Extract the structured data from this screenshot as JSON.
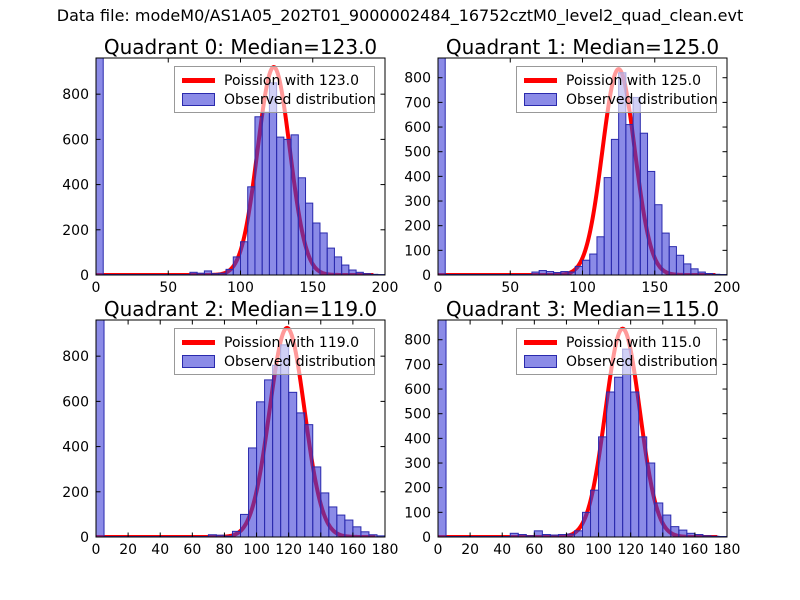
{
  "figure": {
    "title": "Data file: modeM0/AS1A05_202T01_9000002484_16752cztM0_level2_quad_clean.evt"
  },
  "colors": {
    "curve": "#ff0000",
    "bar_fill": "rgba(62,62,215,0.6)",
    "bar_edge": "#2a2aad",
    "axes_line": "#000000",
    "legend_border": "#999999",
    "legend_bg": "rgba(255,255,255,0.6)",
    "text": "#000000"
  },
  "chart_data": [
    {
      "type": "bar",
      "subtype": "histogram_with_poisson_fit",
      "title": "Quadrant 0: Median=123.0",
      "median": 123.0,
      "legend": [
        "Poission with 123.0",
        "Observed distribution"
      ],
      "legend_position": "upper center-right",
      "grid": false,
      "xlabel": "",
      "ylabel": "",
      "xlim": [
        0,
        200
      ],
      "ylim": [
        0,
        960
      ],
      "xticks": [
        0,
        50,
        100,
        150,
        200
      ],
      "yticks": [
        0,
        200,
        400,
        600,
        800
      ],
      "bin_width": 5,
      "counts": [
        960,
        2,
        2,
        2,
        2,
        2,
        2,
        2,
        2,
        2,
        2,
        2,
        2,
        12,
        8,
        18,
        6,
        8,
        25,
        80,
        147,
        390,
        700,
        720,
        850,
        610,
        600,
        620,
        430,
        318,
        230,
        186,
        119,
        80,
        44,
        22,
        12,
        6,
        3,
        2
      ],
      "curve": {
        "mean": 123,
        "sigma": 11.1,
        "amplitude": 920,
        "x_end": 192
      }
    },
    {
      "type": "bar",
      "subtype": "histogram_with_poisson_fit",
      "title": "Quadrant 1: Median=125.0",
      "median": 125.0,
      "legend": [
        "Poission with 125.0",
        "Observed distribution"
      ],
      "legend_position": "upper center-right",
      "grid": false,
      "xlabel": "",
      "ylabel": "",
      "xlim": [
        0,
        200
      ],
      "ylim": [
        0,
        880
      ],
      "xticks": [
        0,
        50,
        100,
        150,
        200
      ],
      "yticks": [
        0,
        100,
        200,
        300,
        400,
        500,
        600,
        700,
        800
      ],
      "bin_width": 5,
      "counts": [
        880,
        2,
        2,
        2,
        2,
        2,
        2,
        2,
        2,
        2,
        2,
        2,
        2,
        12,
        18,
        14,
        10,
        14,
        12,
        35,
        60,
        85,
        155,
        395,
        550,
        820,
        610,
        720,
        575,
        420,
        285,
        170,
        115,
        80,
        45,
        25,
        12,
        6,
        3,
        2
      ],
      "curve": {
        "mean": 125,
        "sigma": 11.2,
        "amplitude": 835,
        "x_end": 192
      }
    },
    {
      "type": "bar",
      "subtype": "histogram_with_poisson_fit",
      "title": "Quadrant 2: Median=119.0",
      "median": 119.0,
      "legend": [
        "Poission with 119.0",
        "Observed distribution"
      ],
      "legend_position": "upper center-right",
      "grid": false,
      "xlabel": "",
      "ylabel": "",
      "xlim": [
        0,
        180
      ],
      "ylim": [
        0,
        960
      ],
      "xticks": [
        0,
        20,
        40,
        60,
        80,
        100,
        120,
        140,
        160,
        180
      ],
      "yticks": [
        0,
        200,
        400,
        600,
        800
      ],
      "bin_width": 5,
      "counts": [
        960,
        2,
        2,
        2,
        2,
        2,
        2,
        2,
        2,
        2,
        2,
        2,
        2,
        2,
        10,
        8,
        4,
        25,
        100,
        394,
        598,
        695,
        760,
        850,
        640,
        549,
        497,
        310,
        195,
        133,
        97,
        75,
        45,
        23,
        10,
        5
      ],
      "curve": {
        "mean": 119,
        "sigma": 10.9,
        "amplitude": 925,
        "x_end": 174
      }
    },
    {
      "type": "bar",
      "subtype": "histogram_with_poisson_fit",
      "title": "Quadrant 3: Median=115.0",
      "median": 115.0,
      "legend": [
        "Poission with 115.0",
        "Observed distribution"
      ],
      "legend_position": "upper center-right",
      "grid": false,
      "xlabel": "",
      "ylabel": "",
      "xlim": [
        0,
        180
      ],
      "ylim": [
        0,
        880
      ],
      "xticks": [
        0,
        20,
        40,
        60,
        80,
        100,
        120,
        140,
        160,
        180
      ],
      "yticks": [
        0,
        100,
        200,
        300,
        400,
        500,
        600,
        700,
        800
      ],
      "bin_width": 5,
      "counts": [
        880,
        2,
        2,
        2,
        2,
        2,
        2,
        2,
        2,
        15,
        10,
        5,
        25,
        10,
        8,
        10,
        12,
        25,
        100,
        190,
        406,
        588,
        648,
        762,
        588,
        406,
        300,
        138,
        89,
        42,
        28,
        15,
        10,
        5,
        3,
        2
      ],
      "curve": {
        "mean": 115,
        "sigma": 10.7,
        "amplitude": 845,
        "x_end": 174
      }
    }
  ]
}
